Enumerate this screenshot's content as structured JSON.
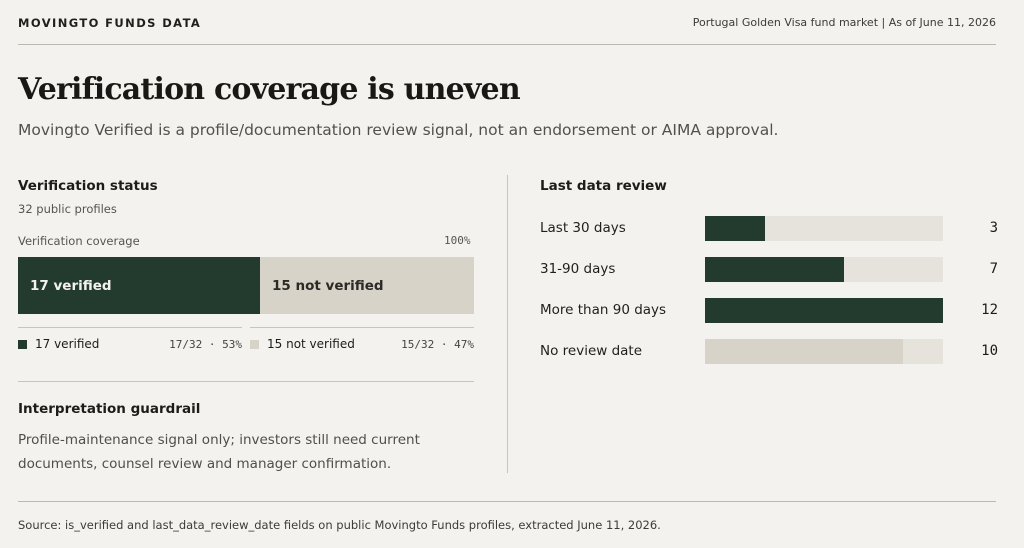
{
  "header": {
    "brand": "MOVINGTO FUNDS DATA",
    "meta": "Portugal Golden Visa fund market | As of June 11, 2026"
  },
  "title": "Verification coverage is uneven",
  "subtitle": "Movingto Verified is a profile/documentation review signal, not an endorsement or AIMA approval.",
  "verification": {
    "heading": "Verification status",
    "profiles_note": "32 public profiles",
    "coverage_label": "Verification coverage",
    "coverage_total": "100%",
    "legend": [
      {
        "label": "17 verified",
        "stat": "17/32 · 53%"
      },
      {
        "label": "15 not verified",
        "stat": "15/32 · 47%"
      }
    ]
  },
  "guardrail": {
    "heading": "Interpretation guardrail",
    "body": "Profile-maintenance signal only; investors still need current documents, counsel review and manager confirmation."
  },
  "review": {
    "heading": "Last data review"
  },
  "colors": {
    "verified": "#233b2e",
    "not_verified": "#d8d3c8",
    "no_date": "#d8d3c8",
    "track": "#e6e3dc"
  },
  "chart_data": [
    {
      "type": "bar",
      "orientation": "horizontal-stacked",
      "title": "Verification status",
      "categories": [
        "17 verified",
        "15 not verified"
      ],
      "values": [
        17,
        15
      ],
      "total": 32
    },
    {
      "type": "bar",
      "orientation": "horizontal",
      "title": "Last data review",
      "categories": [
        "Last 30 days",
        "31-90 days",
        "More than 90 days",
        "No review date"
      ],
      "values": [
        3,
        7,
        12,
        10
      ],
      "xlim": [
        0,
        12
      ]
    }
  ],
  "source": "Source: is_verified and last_data_review_date fields on public Movingto Funds profiles, extracted June 11, 2026."
}
